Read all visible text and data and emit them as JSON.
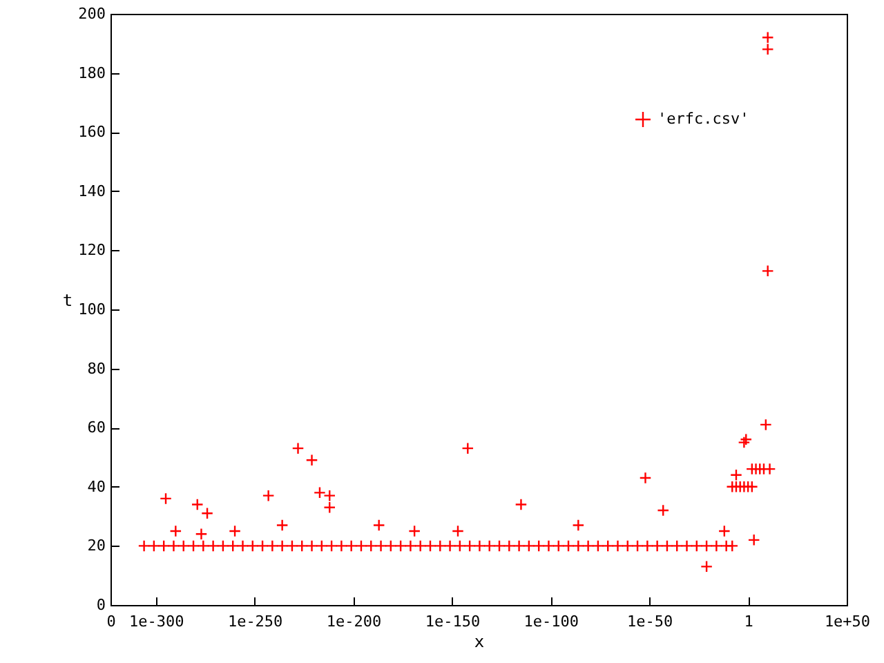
{
  "chart_data": {
    "type": "scatter",
    "xlabel": "x",
    "ylabel": "t",
    "log": "x",
    "grid": false,
    "legend": "top right",
    "marker": "cross",
    "xlim": [
      1e-323,
      1e+50
    ],
    "xticks": [
      {
        "value": 1e-323,
        "label": "0"
      },
      {
        "value": 1e-300,
        "label": "1e-300"
      },
      {
        "value": 1e-250,
        "label": "1e-250"
      },
      {
        "value": 1e-200,
        "label": "1e-200"
      },
      {
        "value": 1e-150,
        "label": "1e-150"
      },
      {
        "value": 1e-100,
        "label": "1e-100"
      },
      {
        "value": 1e-50,
        "label": "1e-50"
      },
      {
        "value": 1,
        "label": "1"
      },
      {
        "value": 1e+50,
        "label": "1e+50"
      }
    ],
    "ylim": [
      0,
      200
    ],
    "yticks": [
      0,
      20,
      40,
      60,
      80,
      100,
      120,
      140,
      160,
      180,
      200
    ],
    "series": [
      {
        "name": "'erfc.csv'",
        "color": "#ff0000",
        "x": [
          1e-306,
          1e-301,
          1e-296,
          1e-291,
          1e-286,
          1e-281,
          1e-276,
          1e-271,
          1e-266,
          1e-261,
          1e-256,
          1e-251,
          1e-246,
          1e-241,
          1e-236,
          1e-231,
          1e-226,
          1e-221,
          1e-216,
          1e-211,
          1e-206,
          1e-201,
          1e-196,
          1e-191,
          1e-186,
          1e-181,
          1e-176,
          1e-171,
          1e-166,
          1e-161,
          1e-156,
          1e-151,
          1e-146,
          1e-141,
          1e-136,
          1e-131,
          1e-126,
          1e-121,
          1e-116,
          1e-111,
          1e-106,
          1e-101,
          1e-96,
          1e-91,
          1e-86,
          1e-81,
          1e-76,
          1e-71,
          1e-66,
          1e-61,
          1e-56,
          1e-51,
          1e-46,
          1e-41,
          1e-36,
          1e-31,
          1e-26,
          1e-21,
          1e-16,
          1e-11,
          1e-08,
          1e-295,
          1e-290,
          1e-279,
          1e-277,
          1e-274,
          1e-260,
          1e-243,
          1e-236,
          1e-228,
          1e-221,
          1e-217,
          1e-212,
          1e-212,
          1e-187,
          1e-169,
          1e-147,
          1e-142,
          1e-115,
          1e-86,
          1e-52,
          1e-43,
          1e-21,
          1e-12,
          1000.0,
          1e-08,
          1e-06,
          0.0001,
          0.01,
          1,
          100.0,
          1e-06,
          0.01,
          0.1,
          100.0,
          10000.0,
          1000000.0,
          100000000.0,
          100000000000.0,
          1000000000.0,
          10000000000.0,
          10000000000.0,
          10000000000.0
        ],
        "values": [
          20,
          20,
          20,
          20,
          20,
          20,
          20,
          20,
          20,
          20,
          20,
          20,
          20,
          20,
          20,
          20,
          20,
          20,
          20,
          20,
          20,
          20,
          20,
          20,
          20,
          20,
          20,
          20,
          20,
          20,
          20,
          20,
          20,
          20,
          20,
          20,
          20,
          20,
          20,
          20,
          20,
          20,
          20,
          20,
          20,
          20,
          20,
          20,
          20,
          20,
          20,
          20,
          20,
          20,
          20,
          20,
          20,
          20,
          20,
          20,
          20,
          36,
          25,
          34,
          24,
          31,
          25,
          37,
          27,
          53,
          49,
          38,
          37,
          33,
          27,
          25,
          25,
          53,
          34,
          27,
          43,
          32,
          13,
          25,
          22,
          40,
          40,
          40,
          40,
          40,
          40,
          44,
          55,
          56,
          46,
          46,
          46,
          46,
          46,
          61,
          113,
          188,
          192
        ]
      }
    ]
  }
}
